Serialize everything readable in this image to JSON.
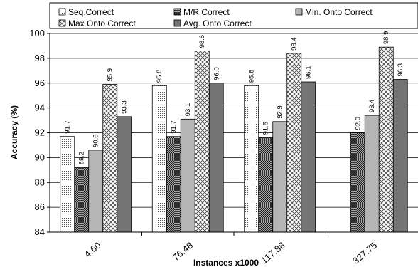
{
  "chart_data": {
    "type": "bar",
    "xlabel": "Instances x1000",
    "ylabel": "Accuracy (%)",
    "ylim": [
      84,
      100
    ],
    "yticks": [
      84,
      86,
      88,
      90,
      92,
      94,
      96,
      98,
      100
    ],
    "grid": true,
    "legend_position": "top",
    "categories": [
      "4.60",
      "76.48",
      "117.88",
      "327.75"
    ],
    "series": [
      {
        "name": "Seq.Correct",
        "pattern": "dots",
        "color": "#ffffff",
        "values": [
          91.7,
          95.8,
          95.8,
          null
        ]
      },
      {
        "name": "M/R Correct",
        "pattern": "dense-crosshatch",
        "color": "#555555",
        "values": [
          89.2,
          91.7,
          91.6,
          92.0
        ]
      },
      {
        "name": "Min. Onto Correct",
        "pattern": "solid",
        "color": "#b5b5b5",
        "values": [
          90.6,
          93.1,
          92.9,
          93.4
        ]
      },
      {
        "name": "Max Onto Correct",
        "pattern": "crosshatch",
        "color": "#cccccc",
        "values": [
          95.9,
          98.6,
          98.4,
          98.9
        ]
      },
      {
        "name": "Avg. Onto Correct",
        "pattern": "solid",
        "color": "#747474",
        "values": [
          93.3,
          96.0,
          96.1,
          96.3
        ]
      }
    ],
    "data_labels": [
      [
        "91.7",
        "95.8",
        "95.8",
        null
      ],
      [
        "89.2",
        "91.7",
        "91.6",
        "92.0"
      ],
      [
        "90.6",
        "93.1",
        "92.9",
        "93.4"
      ],
      [
        "95.9",
        "98.6",
        "98.4",
        "98.9"
      ],
      [
        "93.3",
        "96.0",
        "96.1",
        "96.3"
      ]
    ]
  }
}
